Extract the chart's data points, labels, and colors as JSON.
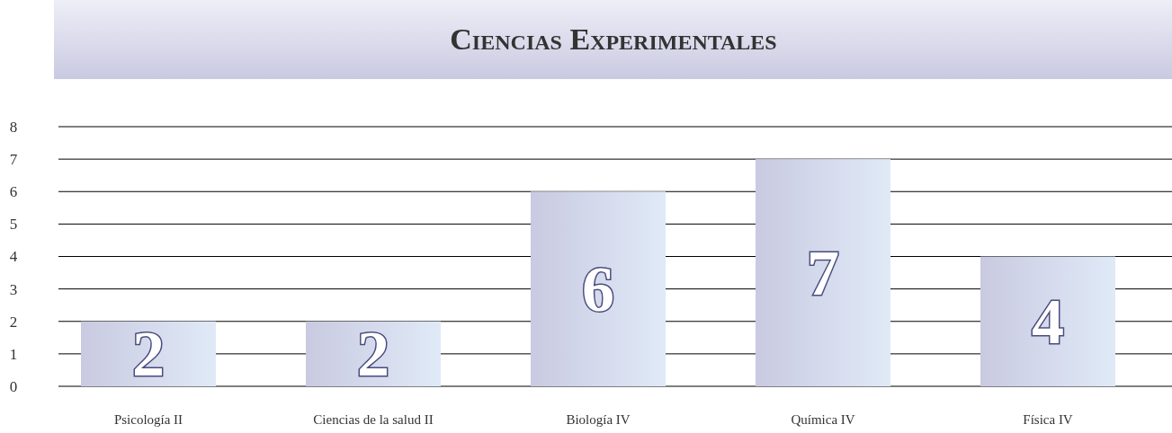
{
  "chart_data": {
    "type": "bar",
    "title": "Ciencias Experimentales",
    "categories": [
      "Psicología II",
      "Ciencias de la salud II",
      "Biología IV",
      "Química IV",
      "Física IV"
    ],
    "values": [
      2,
      2,
      6,
      7,
      4
    ],
    "color": "#c9cae1",
    "ylim": [
      0,
      8
    ],
    "yticks": [
      0,
      1,
      2,
      3,
      4,
      5,
      6,
      7,
      8
    ],
    "grid": "y",
    "data_labels": true
  }
}
